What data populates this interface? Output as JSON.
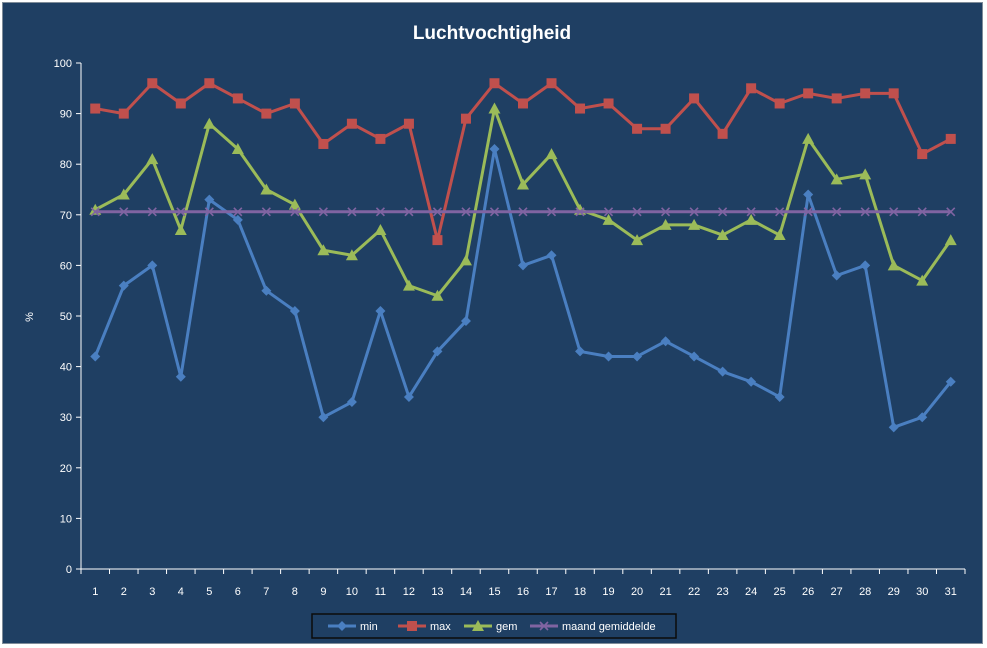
{
  "chart_data": {
    "type": "line",
    "title": "Luchtvochtigheid",
    "xlabel": "",
    "ylabel": "%",
    "ylim": [
      0,
      100
    ],
    "ystep": 10,
    "grid": false,
    "legend_position": "bottom",
    "categories": [
      "1",
      "2",
      "3",
      "4",
      "5",
      "6",
      "7",
      "8",
      "9",
      "10",
      "11",
      "12",
      "13",
      "14",
      "15",
      "16",
      "17",
      "18",
      "19",
      "20",
      "21",
      "22",
      "23",
      "24",
      "25",
      "26",
      "27",
      "28",
      "29",
      "30",
      "31"
    ],
    "series": [
      {
        "name": "min",
        "color": "#4a7fc1",
        "marker": "diamond",
        "values": [
          42,
          56,
          60,
          38,
          73,
          69,
          55,
          51,
          30,
          33,
          51,
          34,
          43,
          49,
          83,
          60,
          62,
          43,
          42,
          42,
          45,
          42,
          39,
          37,
          34,
          74,
          58,
          60,
          28,
          30,
          37
        ]
      },
      {
        "name": "max",
        "color": "#c0504d",
        "marker": "square",
        "values": [
          91,
          90,
          96,
          92,
          96,
          93,
          90,
          92,
          84,
          88,
          85,
          88,
          65,
          89,
          96,
          92,
          96,
          91,
          92,
          87,
          87,
          93,
          86,
          95,
          92,
          94,
          93,
          94,
          94,
          82,
          85
        ]
      },
      {
        "name": "gem",
        "color": "#9bbb59",
        "marker": "triangle",
        "values": [
          71,
          74,
          81,
          67,
          88,
          83,
          75,
          72,
          63,
          62,
          67,
          56,
          54,
          61,
          91,
          76,
          82,
          71,
          69,
          65,
          68,
          68,
          66,
          69,
          66,
          85,
          77,
          78,
          60,
          57,
          65
        ]
      },
      {
        "name": "maand gemiddelde",
        "color": "#8064a2",
        "marker": "x",
        "values": [
          70.6,
          70.6,
          70.6,
          70.6,
          70.6,
          70.6,
          70.6,
          70.6,
          70.6,
          70.6,
          70.6,
          70.6,
          70.6,
          70.6,
          70.6,
          70.6,
          70.6,
          70.6,
          70.6,
          70.6,
          70.6,
          70.6,
          70.6,
          70.6,
          70.6,
          70.6,
          70.6,
          70.6,
          70.6,
          70.6,
          70.6
        ]
      }
    ]
  }
}
